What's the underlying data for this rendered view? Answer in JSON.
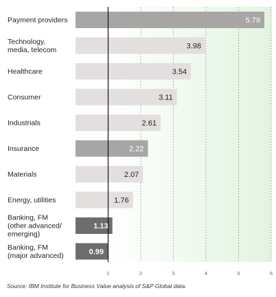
{
  "chart_data": {
    "type": "bar",
    "orientation": "horizontal",
    "categories": [
      "Payment providers",
      "Technology, media, telecom",
      "Healthcare",
      "Consumer",
      "Industrials",
      "Insurance",
      "Materials",
      "Energy, utilities",
      "Banking, FM (other advanced/ emerging)",
      "Banking, FM (major advanced)"
    ],
    "category_lines": [
      [
        "Payment providers"
      ],
      [
        "Technology,",
        "media, telecom"
      ],
      [
        "Healthcare"
      ],
      [
        "Consumer"
      ],
      [
        "Industrials"
      ],
      [
        "Insurance"
      ],
      [
        "Materials"
      ],
      [
        "Energy, utilities"
      ],
      [
        "Banking, FM",
        "(other advanced/",
        "emerging)"
      ],
      [
        "Banking, FM",
        "(major advanced)"
      ]
    ],
    "values": [
      5.79,
      3.98,
      3.54,
      3.11,
      2.61,
      2.22,
      2.07,
      1.76,
      1.13,
      0.99
    ],
    "value_labels": [
      "5.79",
      "3.98",
      "3.54",
      "3.11",
      "2.61",
      "2.22",
      "2.07",
      "1.76",
      "1.13",
      "0.99"
    ],
    "bar_styles": [
      "medium",
      "light",
      "light",
      "light",
      "light",
      "medium",
      "light",
      "light",
      "dark",
      "dark"
    ],
    "xlim": [
      0,
      6
    ],
    "xticks": [
      1,
      2,
      3,
      4,
      5,
      6
    ],
    "reference_line": 1,
    "shaded_region": [
      1,
      6
    ],
    "grid": true,
    "title": "",
    "xlabel": "",
    "ylabel": ""
  },
  "colors": {
    "light": "#e3dfdf",
    "medium": "#a8a5a5",
    "dark": "#6f6c6c",
    "reference_line": "#111111",
    "grid": "#9b9b9b",
    "shade_start": "#ffffff",
    "shade_end": "#e2f4e0"
  },
  "source_text": "Source: IBM Institute for Business Value analysis of S&P Global data."
}
